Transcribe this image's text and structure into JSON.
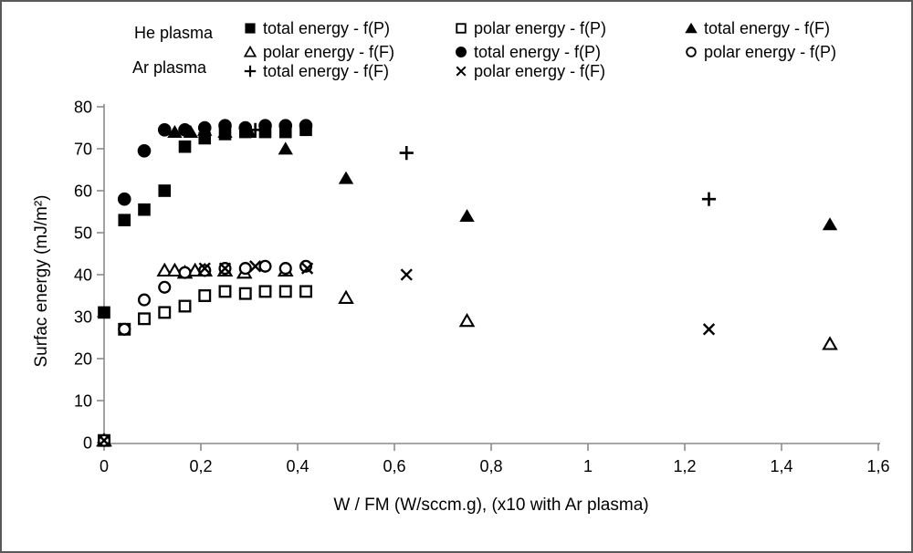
{
  "colors": {
    "marker": "#000000",
    "axis_line": "#8a8a8a",
    "text": "#000000",
    "figure_border": "#595959",
    "background": "#ffffff"
  },
  "legend": {
    "group_labels": [
      "He plasma",
      "Ar plasma"
    ],
    "items": [
      {
        "series_id": "he-total-fp",
        "marker": "filled-square",
        "label": "total energy - f(P)",
        "col": 0,
        "row": 0
      },
      {
        "series_id": "he-polar-ff",
        "marker": "open-triangle",
        "label": "polar energy - f(F)",
        "col": 0,
        "row": 1
      },
      {
        "series_id": "ar-total-ff",
        "marker": "plus",
        "label": "total energy - f(F)",
        "col": 0,
        "row": 2
      },
      {
        "series_id": "he-polar-fp",
        "marker": "open-square",
        "label": "polar energy - f(P)",
        "col": 1,
        "row": 0
      },
      {
        "series_id": "ar-total-fp",
        "marker": "filled-circle",
        "label": "total energy - f(P)",
        "col": 1,
        "row": 1
      },
      {
        "series_id": "ar-polar-ff",
        "marker": "x",
        "label": "polar energy - f(F)",
        "col": 1,
        "row": 2
      },
      {
        "series_id": "he-total-ff",
        "marker": "filled-triangle",
        "label": "total energy - f(F)",
        "col": 2,
        "row": 0
      },
      {
        "series_id": "ar-polar-fp",
        "marker": "open-circle",
        "label": "polar energy - f(P)",
        "col": 2,
        "row": 1
      }
    ]
  },
  "chart_data": {
    "type": "scatter",
    "title": "",
    "xlabel": "W / FM (W/sccm.g), (x10 with Ar plasma)",
    "ylabel": "Surfac energy (mJ/m²)",
    "xlim": [
      0,
      1.6
    ],
    "ylim": [
      0,
      80
    ],
    "grid": false,
    "x_ticks": [
      0,
      0.2,
      0.4,
      0.6,
      0.8,
      1.0,
      1.2,
      1.4,
      1.6
    ],
    "x_tick_labels": [
      "0",
      "0,2",
      "0,4",
      "0,6",
      "0,8",
      "1",
      "1,2",
      "1,4",
      "1,6"
    ],
    "y_ticks": [
      0,
      10,
      20,
      30,
      40,
      50,
      60,
      70,
      80
    ],
    "y_tick_labels": [
      "0",
      "10",
      "20",
      "30",
      "40",
      "50",
      "60",
      "70",
      "80"
    ],
    "legend_position": "top",
    "series": [
      {
        "id": "he-total-fp",
        "group": "He plasma",
        "name": "total energy - f(P)",
        "marker": "filled-square",
        "points": [
          [
            0,
            31
          ],
          [
            0.042,
            53
          ],
          [
            0.083,
            55.5
          ],
          [
            0.125,
            60
          ],
          [
            0.167,
            70.5
          ],
          [
            0.208,
            72.5
          ],
          [
            0.25,
            73.5
          ],
          [
            0.292,
            74
          ],
          [
            0.333,
            74
          ],
          [
            0.375,
            74
          ],
          [
            0.417,
            74.5
          ]
        ]
      },
      {
        "id": "he-total-ff",
        "group": "He plasma",
        "name": "total energy - f(F)",
        "marker": "filled-triangle",
        "points": [
          [
            0.146,
            74
          ],
          [
            0.179,
            74
          ],
          [
            0.208,
            74.5
          ],
          [
            0.25,
            74
          ],
          [
            0.3,
            74
          ],
          [
            0.375,
            70
          ],
          [
            0.5,
            63
          ],
          [
            0.75,
            54
          ],
          [
            1.5,
            52
          ]
        ]
      },
      {
        "id": "ar-total-fp",
        "group": "Ar plasma",
        "name": "total energy - f(P)",
        "marker": "filled-circle",
        "points": [
          [
            0.042,
            58
          ],
          [
            0.083,
            69.5
          ],
          [
            0.125,
            74.5
          ],
          [
            0.167,
            74.5
          ],
          [
            0.208,
            75
          ],
          [
            0.25,
            75.5
          ],
          [
            0.292,
            75
          ],
          [
            0.333,
            75.5
          ],
          [
            0.375,
            75.5
          ],
          [
            0.417,
            75.5
          ]
        ]
      },
      {
        "id": "he-polar-ff",
        "group": "He plasma",
        "name": "polar energy - f(F)",
        "marker": "open-triangle",
        "points": [
          [
            0,
            0.5
          ],
          [
            0.125,
            41
          ],
          [
            0.146,
            41
          ],
          [
            0.167,
            40.5
          ],
          [
            0.188,
            41
          ],
          [
            0.208,
            41
          ],
          [
            0.25,
            41
          ],
          [
            0.29,
            40.5
          ],
          [
            0.375,
            41
          ],
          [
            0.5,
            34.5
          ],
          [
            0.75,
            29
          ],
          [
            1.5,
            23.5
          ]
        ]
      },
      {
        "id": "he-polar-fp",
        "group": "He plasma",
        "name": "polar energy - f(P)",
        "marker": "open-square",
        "points": [
          [
            0,
            0.5
          ],
          [
            0.042,
            27
          ],
          [
            0.083,
            29.5
          ],
          [
            0.125,
            31
          ],
          [
            0.167,
            32.5
          ],
          [
            0.208,
            35
          ],
          [
            0.25,
            36
          ],
          [
            0.292,
            35.5
          ],
          [
            0.333,
            36
          ],
          [
            0.375,
            36
          ],
          [
            0.417,
            36
          ]
        ]
      },
      {
        "id": "ar-polar-fp",
        "group": "Ar plasma",
        "name": "polar energy - f(P)",
        "marker": "open-circle",
        "points": [
          [
            0,
            0.5
          ],
          [
            0.042,
            27
          ],
          [
            0.083,
            34
          ],
          [
            0.125,
            37
          ],
          [
            0.167,
            40.5
          ],
          [
            0.208,
            41
          ],
          [
            0.25,
            41.5
          ],
          [
            0.292,
            41.5
          ],
          [
            0.333,
            42
          ],
          [
            0.375,
            41.5
          ],
          [
            0.417,
            42
          ]
        ]
      },
      {
        "id": "ar-polar-ff",
        "group": "Ar plasma",
        "name": "polar energy - f(F)",
        "marker": "x",
        "points": [
          [
            0,
            0.5
          ],
          [
            0.208,
            41.5
          ],
          [
            0.25,
            41.5
          ],
          [
            0.3125,
            42
          ],
          [
            0.42,
            41.5
          ],
          [
            0.625,
            40
          ],
          [
            1.25,
            27
          ]
        ]
      },
      {
        "id": "ar-total-ff",
        "group": "Ar plasma",
        "name": "total energy - f(F)",
        "marker": "plus",
        "points": [
          [
            0.3125,
            74.5
          ],
          [
            0.625,
            69
          ],
          [
            1.25,
            58
          ]
        ]
      }
    ]
  }
}
